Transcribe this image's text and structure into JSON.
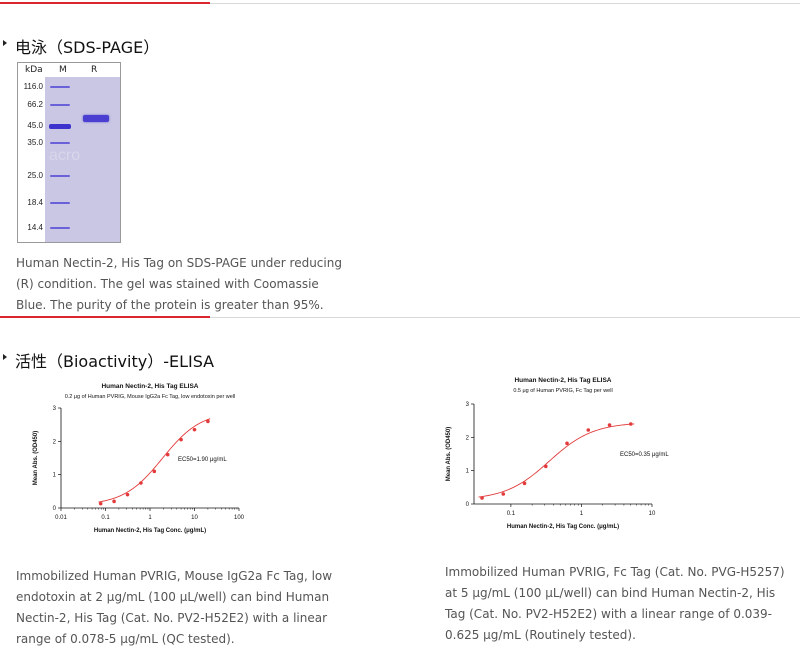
{
  "sections": {
    "sds": {
      "title": "电泳（SDS-PAGE）",
      "gel": {
        "header_kda": "kDa",
        "lane_m": "M",
        "lane_r": "R",
        "markers": [
          "116.0",
          "66.2",
          "45.0",
          "35.0",
          "25.0",
          "18.4",
          "14.4"
        ],
        "watermark": "acro"
      },
      "caption": "Human Nectin-2, His Tag on SDS-PAGE under reducing (R) condition. The gel was stained with Coomassie Blue. The purity of the protein is greater than 95%."
    },
    "elisa": {
      "title": "活性（Bioactivity）-ELISA",
      "caption_left": "Immobilized Human PVRIG, Mouse IgG2a Fc Tag, low endotoxin at 2 μg/mL (100 μL/well) can bind Human Nectin-2, His Tag (Cat. No. PV2-H52E2) with a linear range of 0.078-5 μg/mL (QC tested).",
      "caption_right": "Immobilized Human PVRIG, Fc Tag (Cat. No. PVG-H5257) at 5 μg/mL (100 μL/well) can bind Human Nectin-2, His Tag (Cat. No. PV2-H52E2) with a linear range of 0.039-0.625 μg/mL (Routinely tested)."
    }
  },
  "colors": {
    "accent": "#d9252f",
    "curve": "#e33b3b",
    "gel_bg": "#c9c7e3",
    "band": "#4a3fd0"
  },
  "chart_data": [
    {
      "type": "scatter",
      "title": "Human Nectin-2, His Tag ELISA",
      "subtitle": "0.2 μg of Human PVRIG, Mouse IgG2a Fc Tag, low endotoxin per well",
      "xlabel": "Human Nectin-2, His Tag Conc. (μg/mL)",
      "ylabel": "Mean Abs. (OD450)",
      "x_scale": "log",
      "xlim": [
        0.01,
        100
      ],
      "ylim": [
        0,
        3
      ],
      "xticks": [
        "0.01",
        "0.1",
        "1",
        "10",
        "100"
      ],
      "yticks": [
        "0",
        "1",
        "2",
        "3"
      ],
      "annotation": "EC50=1.90 μg/mL",
      "series": [
        {
          "x": [
            0.078,
            0.156,
            0.3125,
            0.625,
            1.25,
            2.5,
            5,
            10,
            20
          ],
          "y": [
            0.13,
            0.2,
            0.4,
            0.75,
            1.1,
            1.6,
            2.05,
            2.35,
            2.6
          ],
          "fit": "4PL",
          "ec50": 1.9,
          "bottom": 0.08,
          "top": 2.9,
          "hill": 1.0
        }
      ]
    },
    {
      "type": "scatter",
      "title": "Human Nectin-2, His Tag ELISA",
      "subtitle": "0.5 μg of Human PVRIG, Fc Tag per well",
      "xlabel": "Human Nectin-2, His Tag Conc. (μg/mL)",
      "ylabel": "Mean Abs. (OD450)",
      "x_scale": "log",
      "xlim": [
        0.03,
        10
      ],
      "ylim": [
        0,
        3
      ],
      "xticks": [
        "0.1",
        "1",
        "10"
      ],
      "yticks": [
        "0",
        "1",
        "2",
        "3"
      ],
      "annotation": "EC50=0.35 μg/mL",
      "series": [
        {
          "x": [
            0.039,
            0.078,
            0.156,
            0.3125,
            0.625,
            1.25,
            2.5,
            5
          ],
          "y": [
            0.18,
            0.3,
            0.62,
            1.13,
            1.82,
            2.22,
            2.37,
            2.4
          ],
          "fit": "4PL",
          "ec50": 0.35,
          "bottom": 0.12,
          "top": 2.45,
          "hill": 1.4
        }
      ]
    }
  ]
}
